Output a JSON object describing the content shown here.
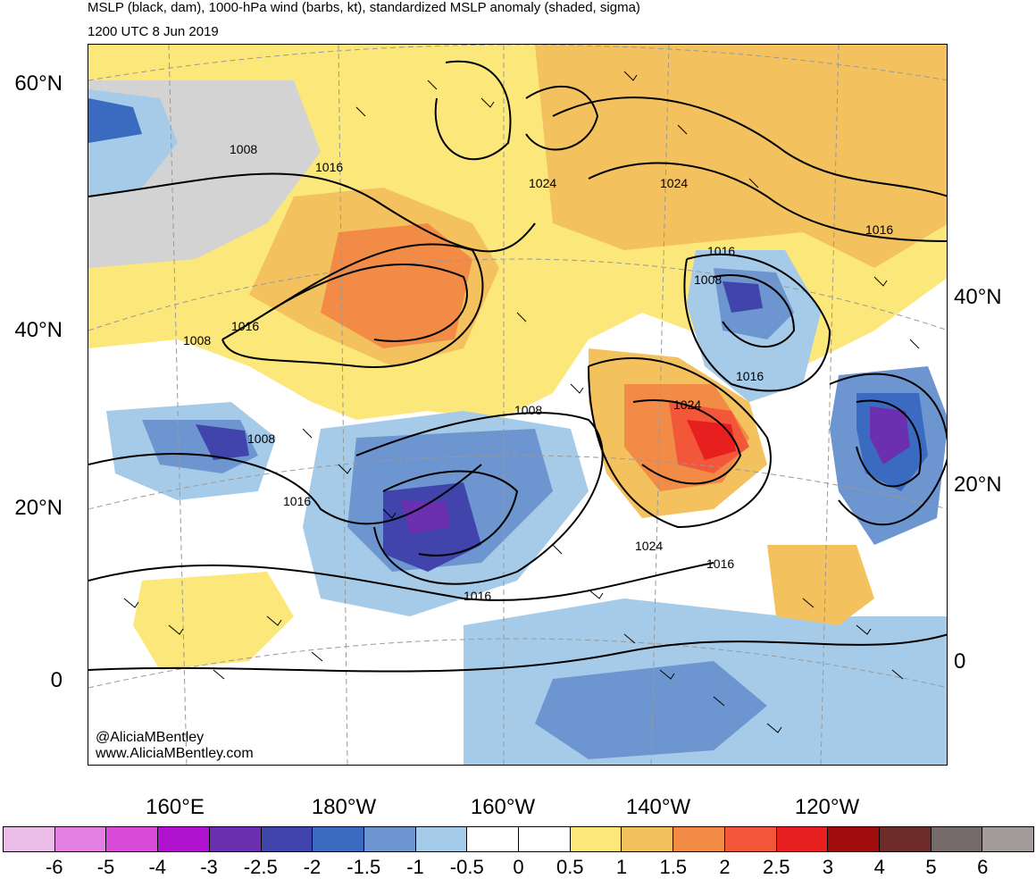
{
  "header": {
    "title": "MSLP (black, dam), 1000-hPa wind (barbs, kt), standardized MSLP anomaly (shaded, sigma)",
    "valid_time": "1200 UTC 8 Jun 2019"
  },
  "axes": {
    "lat_left": [
      "60°N",
      "40°N",
      "20°N",
      "0"
    ],
    "lat_right": [
      "40°N",
      "20°N",
      "0"
    ],
    "lon_bottom": [
      "160°E",
      "180°W",
      "160°W",
      "140°W",
      "120°W"
    ]
  },
  "credits": {
    "twitter": "@AliciaMBentley",
    "website": "www.AliciaMBentley.com"
  },
  "isobar_labels": [
    "1008",
    "1016",
    "1008",
    "1016",
    "1024",
    "1024",
    "1016",
    "1016",
    "1008",
    "1008",
    "1016",
    "1016",
    "1008",
    "1016",
    "1024",
    "1024",
    "1016"
  ],
  "colorbar": {
    "colors": [
      "#ebbce8",
      "#e37ee2",
      "#d84ad8",
      "#b013d0",
      "#6c2fb0",
      "#4044ab",
      "#3b6bc1",
      "#6d96d0",
      "#a6cbe8",
      "#ffffff",
      "#ffffff",
      "#fbe77a",
      "#f4c15f",
      "#f28b46",
      "#f2573a",
      "#e81f1f",
      "#a10d0d",
      "#6f2a2a",
      "#756b6b",
      "#a49b9b"
    ],
    "labels": [
      "-6",
      "-5",
      "-4",
      "-3",
      "-2.5",
      "-2",
      "-1.5",
      "-1",
      "-0.5",
      "0",
      "0.5",
      "1",
      "1.5",
      "2",
      "2.5",
      "3",
      "4",
      "5",
      "6"
    ]
  }
}
